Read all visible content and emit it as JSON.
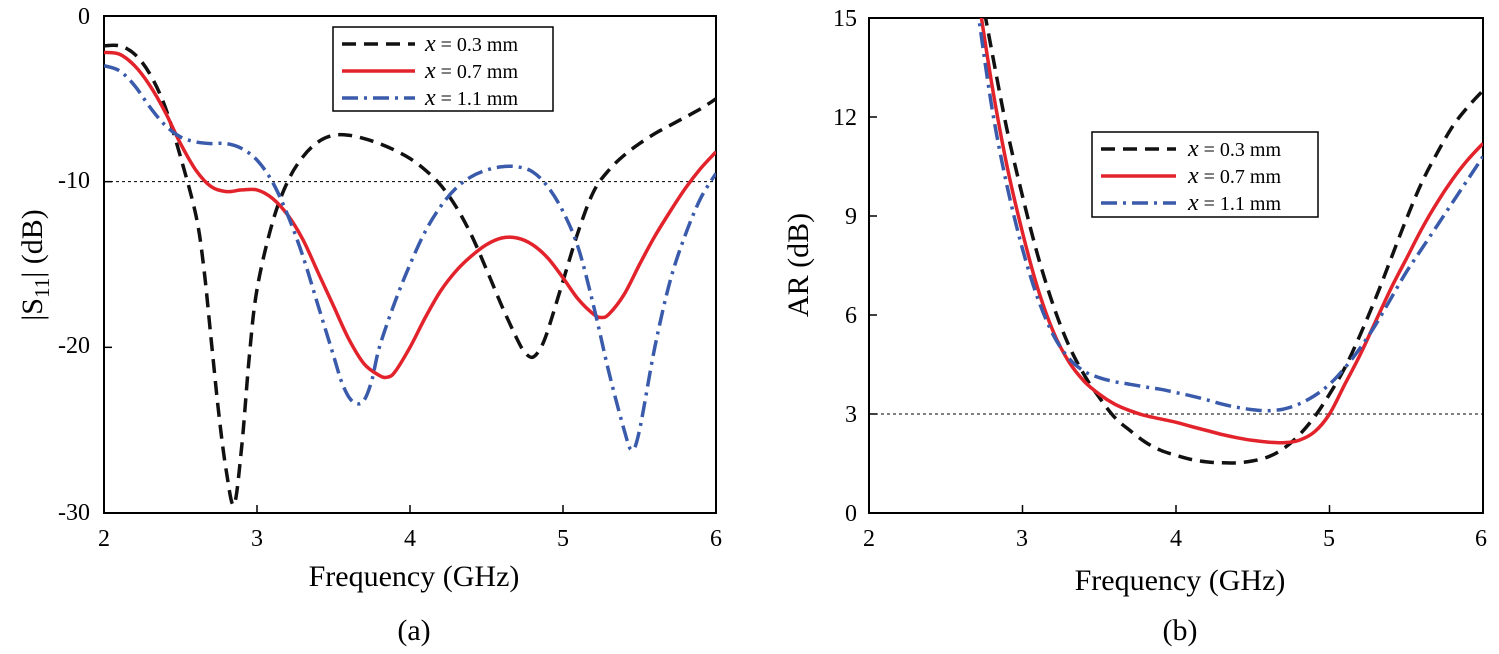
{
  "chart_data": [
    {
      "type": "line",
      "caption": "(a)",
      "xlabel": "Frequency (GHz)",
      "ylabel_main": "|S",
      "ylabel_sub": "11",
      "ylabel_tail": "| (dB)",
      "xlim": [
        2,
        6
      ],
      "ylim": [
        -30,
        0
      ],
      "xticks": [
        "2",
        "3",
        "4",
        "5",
        "6"
      ],
      "yticks": [
        "0",
        "-10",
        "-20",
        "-30"
      ],
      "ytick_values": [
        0,
        -10,
        -20,
        -30
      ],
      "xtick_values": [
        2,
        3,
        4,
        5,
        6
      ],
      "reference_line": -10,
      "legend_position": "top-center",
      "series": [
        {
          "name": "x = 0.3 mm",
          "var": "x",
          "rest": " = 0.3 mm",
          "color": "#111111",
          "dash": "dashed",
          "x": [
            2.0,
            2.1,
            2.2,
            2.3,
            2.4,
            2.5,
            2.6,
            2.65,
            2.7,
            2.75,
            2.8,
            2.85,
            2.9,
            2.95,
            3.0,
            3.1,
            3.2,
            3.3,
            3.4,
            3.5,
            3.6,
            3.7,
            3.8,
            3.9,
            4.0,
            4.1,
            4.2,
            4.3,
            4.4,
            4.5,
            4.6,
            4.7,
            4.75,
            4.8,
            4.85,
            4.9,
            5.0,
            5.1,
            5.2,
            5.3,
            5.4,
            5.5,
            5.6,
            5.7,
            5.8,
            5.9,
            6.0
          ],
          "y": [
            -1.8,
            -1.8,
            -2.3,
            -3.5,
            -5.5,
            -8.5,
            -12.0,
            -15.0,
            -19.5,
            -24.0,
            -27.5,
            -29.5,
            -26.0,
            -20.5,
            -16.5,
            -12.5,
            -10.0,
            -8.5,
            -7.6,
            -7.2,
            -7.2,
            -7.4,
            -7.7,
            -8.1,
            -8.6,
            -9.3,
            -10.2,
            -11.5,
            -13.2,
            -15.3,
            -17.5,
            -19.5,
            -20.3,
            -20.6,
            -20.1,
            -19.0,
            -16.0,
            -13.0,
            -10.6,
            -9.3,
            -8.4,
            -7.7,
            -7.1,
            -6.6,
            -6.1,
            -5.6,
            -5.0
          ]
        },
        {
          "name": "x = 0.7 mm",
          "var": "x",
          "rest": " = 0.7 mm",
          "color": "#e3232b",
          "dash": "solid",
          "x": [
            2.0,
            2.1,
            2.2,
            2.3,
            2.4,
            2.5,
            2.6,
            2.7,
            2.8,
            2.9,
            3.0,
            3.1,
            3.2,
            3.3,
            3.4,
            3.5,
            3.6,
            3.7,
            3.8,
            3.85,
            3.9,
            4.0,
            4.1,
            4.2,
            4.3,
            4.4,
            4.5,
            4.6,
            4.7,
            4.8,
            4.9,
            5.0,
            5.1,
            5.2,
            5.25,
            5.3,
            5.4,
            5.5,
            5.6,
            5.7,
            5.8,
            5.9,
            6.0
          ],
          "y": [
            -2.2,
            -2.3,
            -3.0,
            -4.2,
            -5.8,
            -7.7,
            -9.3,
            -10.3,
            -10.6,
            -10.5,
            -10.5,
            -11.0,
            -12.0,
            -13.5,
            -15.5,
            -17.5,
            -19.5,
            -21.0,
            -21.7,
            -21.8,
            -21.5,
            -20.0,
            -18.2,
            -16.6,
            -15.4,
            -14.5,
            -13.8,
            -13.4,
            -13.4,
            -13.8,
            -14.6,
            -15.8,
            -17.1,
            -18.0,
            -18.2,
            -18.0,
            -16.8,
            -15.0,
            -13.3,
            -11.8,
            -10.4,
            -9.2,
            -8.2
          ]
        },
        {
          "name": "x = 1.1 mm",
          "var": "x",
          "rest": " = 1.1 mm",
          "color": "#3a5bab",
          "dash": "dashdot",
          "x": [
            2.0,
            2.1,
            2.2,
            2.3,
            2.4,
            2.5,
            2.6,
            2.7,
            2.8,
            2.9,
            3.0,
            3.1,
            3.2,
            3.3,
            3.4,
            3.5,
            3.55,
            3.6,
            3.65,
            3.7,
            3.75,
            3.8,
            3.9,
            4.0,
            4.1,
            4.2,
            4.3,
            4.4,
            4.5,
            4.6,
            4.7,
            4.8,
            4.9,
            5.0,
            5.1,
            5.2,
            5.3,
            5.4,
            5.45,
            5.5,
            5.6,
            5.7,
            5.8,
            5.9,
            6.0
          ],
          "y": [
            -3.0,
            -3.3,
            -4.2,
            -5.5,
            -6.6,
            -7.3,
            -7.6,
            -7.7,
            -7.7,
            -8.0,
            -8.7,
            -10.0,
            -12.0,
            -14.5,
            -17.5,
            -20.5,
            -22.0,
            -23.0,
            -23.4,
            -23.2,
            -22.0,
            -20.0,
            -17.3,
            -15.0,
            -13.0,
            -11.5,
            -10.4,
            -9.7,
            -9.3,
            -9.1,
            -9.1,
            -9.4,
            -10.3,
            -11.8,
            -14.0,
            -17.5,
            -21.5,
            -25.0,
            -26.2,
            -25.0,
            -20.0,
            -16.0,
            -13.2,
            -11.0,
            -9.5
          ]
        }
      ]
    },
    {
      "type": "line",
      "caption": "(b)",
      "xlabel": "Frequency (GHz)",
      "ylabel": "AR (dB)",
      "xlim": [
        2,
        6
      ],
      "ylim": [
        0,
        15
      ],
      "xticks": [
        "2",
        "3",
        "4",
        "5",
        "6"
      ],
      "yticks": [
        "0",
        "3",
        "6",
        "9",
        "12",
        "15"
      ],
      "ytick_values": [
        0,
        3,
        6,
        9,
        12,
        15
      ],
      "xtick_values": [
        2,
        3,
        4,
        5,
        6
      ],
      "reference_line": 3,
      "legend_position": "top-center",
      "series": [
        {
          "name": "x = 0.3 mm",
          "var": "x",
          "rest": " = 0.3 mm",
          "color": "#111111",
          "dash": "dashed",
          "x": [
            2.7,
            2.8,
            2.9,
            3.0,
            3.1,
            3.2,
            3.3,
            3.4,
            3.5,
            3.6,
            3.7,
            3.8,
            3.9,
            4.0,
            4.1,
            4.2,
            4.3,
            4.4,
            4.5,
            4.6,
            4.7,
            4.8,
            4.9,
            5.0,
            5.1,
            5.2,
            5.3,
            5.4,
            5.5,
            5.6,
            5.7,
            5.8,
            5.9,
            6.0
          ],
          "y": [
            16.5,
            14.0,
            11.6,
            9.6,
            7.8,
            6.3,
            5.1,
            4.2,
            3.5,
            2.9,
            2.5,
            2.15,
            1.9,
            1.75,
            1.62,
            1.55,
            1.52,
            1.52,
            1.58,
            1.7,
            1.95,
            2.35,
            2.9,
            3.6,
            4.4,
            5.4,
            6.5,
            7.7,
            8.9,
            10.0,
            10.9,
            11.7,
            12.3,
            12.8
          ]
        },
        {
          "name": "x = 0.7 mm",
          "var": "x",
          "rest": " = 0.7 mm",
          "color": "#e3232b",
          "dash": "solid",
          "x": [
            2.7,
            2.8,
            2.9,
            3.0,
            3.1,
            3.2,
            3.3,
            3.4,
            3.5,
            3.6,
            3.7,
            3.8,
            3.9,
            4.0,
            4.1,
            4.2,
            4.3,
            4.4,
            4.5,
            4.6,
            4.7,
            4.8,
            4.9,
            5.0,
            5.1,
            5.2,
            5.3,
            5.4,
            5.5,
            5.6,
            5.7,
            5.8,
            5.9,
            6.0
          ],
          "y": [
            16.0,
            13.0,
            10.5,
            8.5,
            6.8,
            5.5,
            4.6,
            4.0,
            3.6,
            3.3,
            3.1,
            2.95,
            2.85,
            2.75,
            2.62,
            2.5,
            2.38,
            2.28,
            2.2,
            2.15,
            2.13,
            2.2,
            2.45,
            3.0,
            3.9,
            4.8,
            5.8,
            6.8,
            7.7,
            8.6,
            9.4,
            10.1,
            10.7,
            11.2
          ]
        },
        {
          "name": "x = 1.1 mm",
          "var": "x",
          "rest": " = 1.1 mm",
          "color": "#3a5bab",
          "dash": "dashdot",
          "x": [
            2.7,
            2.8,
            2.9,
            3.0,
            3.1,
            3.2,
            3.3,
            3.4,
            3.5,
            3.6,
            3.7,
            3.8,
            3.9,
            4.0,
            4.1,
            4.2,
            4.3,
            4.4,
            4.5,
            4.6,
            4.7,
            4.8,
            4.9,
            5.0,
            5.1,
            5.2,
            5.3,
            5.4,
            5.5,
            5.6,
            5.7,
            5.8,
            5.9,
            6.0
          ],
          "y": [
            15.5,
            12.3,
            9.9,
            8.0,
            6.5,
            5.4,
            4.7,
            4.3,
            4.1,
            3.98,
            3.9,
            3.82,
            3.75,
            3.65,
            3.55,
            3.43,
            3.3,
            3.2,
            3.13,
            3.1,
            3.15,
            3.3,
            3.55,
            3.9,
            4.4,
            5.0,
            5.7,
            6.5,
            7.3,
            8.0,
            8.7,
            9.4,
            10.1,
            10.8
          ]
        }
      ]
    }
  ]
}
